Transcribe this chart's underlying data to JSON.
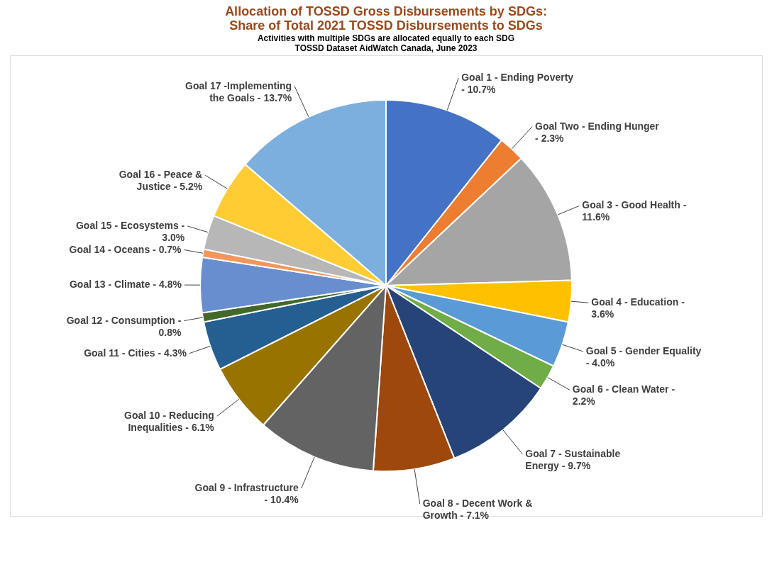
{
  "chart_data": {
    "type": "pie",
    "title": [
      "Allocation of TOSSD Gross Disbursements by SDGs:",
      "Share of Total 2021 TOSSD Disbursements to SDGs"
    ],
    "subtitle": [
      "Activities with multiple SDGs are allocated equally to each SDG",
      "TOSSD Dataset    AidWatch Canada, June 2023"
    ],
    "categories": [
      "Goal 1 - Ending Poverty -",
      "Goal Two - Ending Hunger -",
      "Goal 3 - Good Health -",
      "Goal 4 - Education -",
      "Goal 5 - Gender Equality -",
      "Goal 6 - Clean Water -",
      "Goal 7 - Sustainable Energy -",
      "Goal 8 - Decent Work & Growth -",
      "Goal 9 - Infrastructure -",
      "Goal 10 - Reducing Inequalities -",
      "Goal 11 - Cities -",
      "Goal 12 - Consumption -",
      "Goal 13 - Climate -",
      "Goal 14 - Oceans -",
      "Goal 15 - Ecosystems -",
      "Goal 16 - Peace & Justice -",
      "Goal 17 -Implementing the Goals -"
    ],
    "values": [
      10.7,
      2.3,
      11.6,
      3.6,
      4.0,
      2.2,
      9.7,
      7.1,
      10.4,
      6.1,
      4.3,
      0.8,
      4.8,
      0.7,
      3.0,
      5.2,
      13.7
    ],
    "value_labels": [
      "10.7%",
      "2.3%",
      "11.6%",
      "3.6%",
      "4.0%",
      "2.2%",
      "9.7%",
      "7.1%",
      "10.4%",
      "6.1%",
      "4.3%",
      "0.8%",
      "4.8%",
      "0.7%",
      "3.0%",
      "5.2%",
      "13.7%"
    ],
    "colors": [
      "#4472c4",
      "#ed7d31",
      "#a5a5a5",
      "#ffc000",
      "#5b9bd5",
      "#70ad47",
      "#264478",
      "#9e480e",
      "#636363",
      "#997300",
      "#255e91",
      "#43682b",
      "#698ed0",
      "#f1975a",
      "#b7b7b7",
      "#ffcd33",
      "#7cafdd"
    ],
    "legend": false
  }
}
